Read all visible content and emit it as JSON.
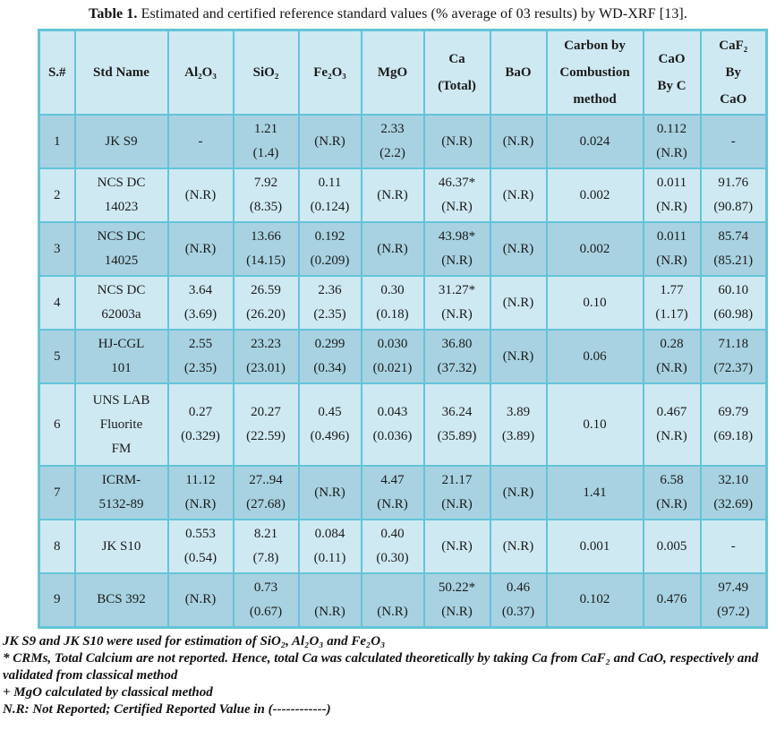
{
  "title": {
    "label": "Table 1.",
    "text": " Estimated and certified reference standard values (% average of 03 results) by WD-XRF [13]."
  },
  "table": {
    "columns": [
      "S.#",
      "Std Name",
      "Al₂O₃",
      "SiO₂",
      "Fe₂O₃",
      "MgO",
      "Ca\n(Total)",
      "BaO",
      "Carbon by\nCombustion\nmethod",
      "CaO\nBy C",
      "CaF₂\nBy\nCaO"
    ],
    "rows": [
      {
        "cells": [
          "1",
          "JK S9",
          "-",
          "1.21\n(1.4)",
          "(N.R)",
          "2.33\n(2.2)",
          "(N.R)",
          "(N.R)",
          "0.024",
          "0.112\n(N.R)",
          "-"
        ]
      },
      {
        "cells": [
          "2",
          "NCS DC\n14023",
          "(N.R)",
          "7.92\n(8.35)",
          "0.11\n(0.124)",
          "(N.R)",
          "46.37*\n(N.R)",
          "(N.R)",
          "0.002",
          "0.011\n(N.R)",
          "91.76\n(90.87)"
        ]
      },
      {
        "cells": [
          "3",
          "NCS DC\n14025",
          "(N.R)",
          "13.66\n(14.15)",
          "0.192\n(0.209)",
          "(N.R)",
          "43.98*\n(N.R)",
          "(N.R)",
          "0.002",
          "0.011\n(N.R)",
          "85.74\n(85.21)"
        ]
      },
      {
        "cells": [
          "4",
          "NCS DC\n62003a",
          "3.64\n(3.69)",
          "26.59\n(26.20)",
          "2.36\n(2.35)",
          "0.30\n(0.18)",
          "31.27*\n(N.R)",
          "(N.R)",
          "0.10",
          "1.77\n(1.17)",
          "60.10\n(60.98)"
        ]
      },
      {
        "cells": [
          "5",
          "HJ-CGL\n101",
          "2.55\n(2.35)",
          "23.23\n(23.01)",
          "0.299\n(0.34)",
          "0.030\n(0.021)",
          "36.80\n(37.32)",
          "(N.R)",
          "0.06",
          "0.28\n(N.R)",
          "71.18\n(72.37)"
        ]
      },
      {
        "cells": [
          "6",
          "UNS LAB\nFluorite\nFM",
          "0.27\n(0.329)",
          "20.27\n(22.59)",
          "0.45\n(0.496)",
          "0.043\n(0.036)",
          "36.24\n(35.89)",
          "3.89\n(3.89)",
          "0.10",
          "0.467\n(N.R)",
          "69.79\n(69.18)"
        ]
      },
      {
        "cells": [
          "7",
          "ICRM-\n5132-89",
          "11.12\n(N.R)",
          "27..94\n(27.68)",
          "(N.R)",
          "4.47\n(N.R)",
          "21.17\n(N.R)",
          "(N.R)",
          "1.41",
          "6.58\n(N.R)",
          "32.10\n(32.69)"
        ]
      },
      {
        "cells": [
          "8",
          "JK S10",
          "0.553\n(0.54)",
          "8.21\n(7.8)",
          "0.084\n(0.11)",
          "0.40\n(0.30)",
          "(N.R)",
          "(N.R)",
          "0.001",
          "0.005",
          "-"
        ]
      },
      {
        "cells": [
          "9",
          "BCS 392",
          "(N.R)",
          "0.73\n(0.67)",
          "\n(N.R)",
          "\n(N.R)",
          "50.22*\n(N.R)",
          "0.46\n(0.37)",
          "0.102",
          "0.476",
          "97.49\n(97.2)"
        ]
      }
    ]
  },
  "footnotes": [
    "JK S9 and JK S10 were used for estimation of SiO₂, Al₂O₃ and Fe₂O₃",
    "* CRMs, Total Calcium are not reported. Hence, total Ca was calculated theoretically by taking Ca from CaF₂ and CaO, respectively and validated from classical method",
    "+ MgO calculated by classical method",
    "N.R: Not Reported; Certified Reported Value in (------------)"
  ],
  "colors": {
    "border": "#63c4d9",
    "row_odd": "#a8d2e1",
    "row_even": "#cfe9f2",
    "header_bg": "#cfe9f2",
    "text": "#1b1b1b"
  }
}
